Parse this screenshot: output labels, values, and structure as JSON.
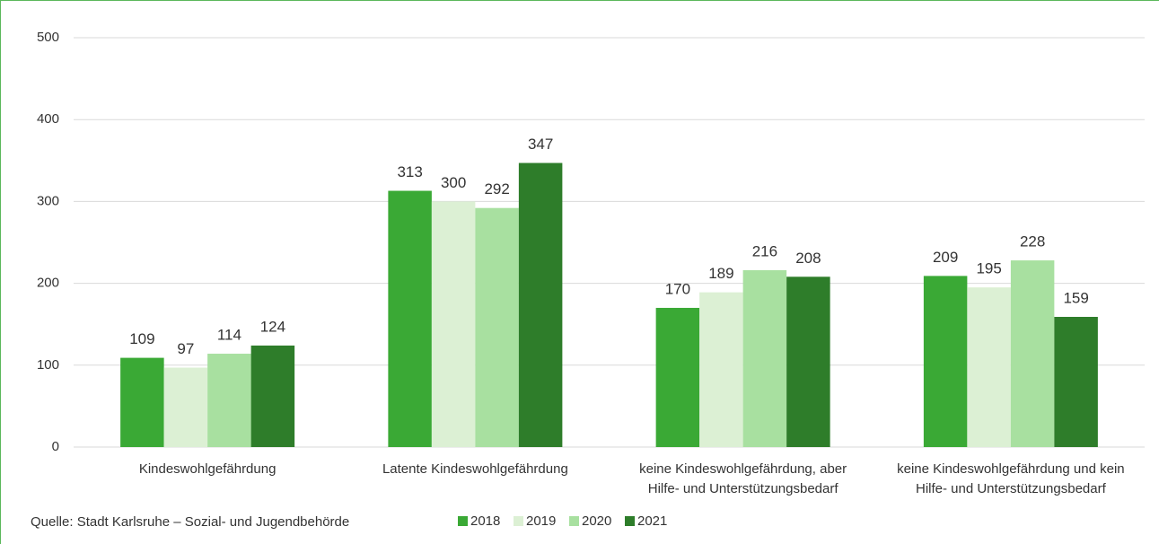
{
  "chart_data": {
    "type": "bar",
    "categories": [
      [
        "Kindeswohlgefährdung"
      ],
      [
        "Latente Kindeswohlgefährdung"
      ],
      [
        "keine Kindeswohlgefährdung, aber",
        "Hilfe- und Unterstützungsbedarf"
      ],
      [
        "keine Kindeswohlgefährdung und kein",
        "Hilfe- und Unterstützungsbedarf"
      ]
    ],
    "series": [
      {
        "name": "2018",
        "color": "#3aa935",
        "values": [
          109,
          313,
          170,
          209
        ]
      },
      {
        "name": "2019",
        "color": "#dcf0d4",
        "values": [
          97,
          300,
          189,
          195
        ]
      },
      {
        "name": "2020",
        "color": "#a8e0a0",
        "values": [
          114,
          292,
          216,
          228
        ]
      },
      {
        "name": "2021",
        "color": "#2e7d2a",
        "values": [
          124,
          347,
          208,
          159
        ]
      }
    ],
    "ylim": [
      0,
      500
    ],
    "yticks": [
      0,
      100,
      200,
      300,
      400,
      500
    ],
    "grid": true,
    "legend": "bottom",
    "source": "Quelle: Stadt Karlsruhe – Sozial- und Jugendbehörde"
  }
}
